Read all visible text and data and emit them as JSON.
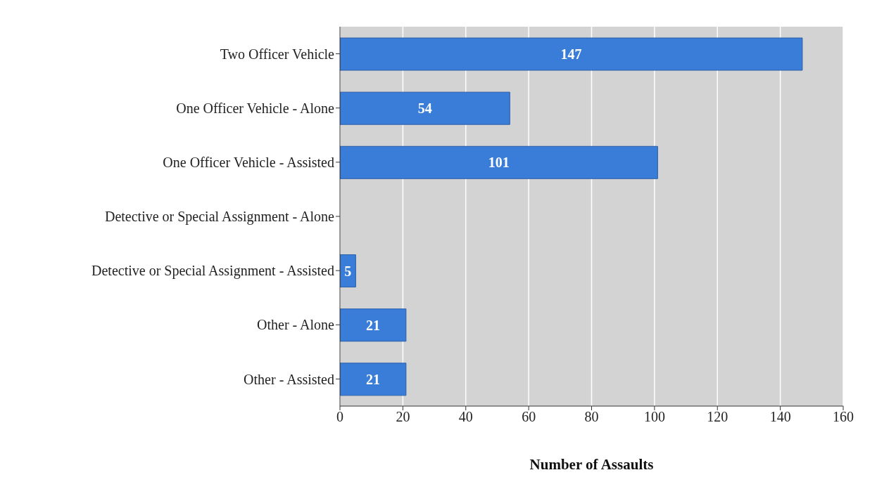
{
  "chart_data": {
    "type": "bar",
    "orientation": "horizontal",
    "categories": [
      "Two Officer Vehicle",
      "One Officer Vehicle - Alone",
      "One Officer Vehicle - Assisted",
      "Detective or Special Assignment - Alone",
      "Detective or Special Assignment - Assisted",
      "Other - Alone",
      "Other - Assisted"
    ],
    "values": [
      147,
      54,
      101,
      null,
      5,
      21,
      21
    ],
    "color": "#3a7dd8",
    "xlim": [
      0,
      160
    ],
    "xticks": [
      0,
      20,
      40,
      60,
      80,
      100,
      120,
      140,
      160
    ],
    "xlabel": "Number of Assaults",
    "grid": "x",
    "data_labels": true
  }
}
